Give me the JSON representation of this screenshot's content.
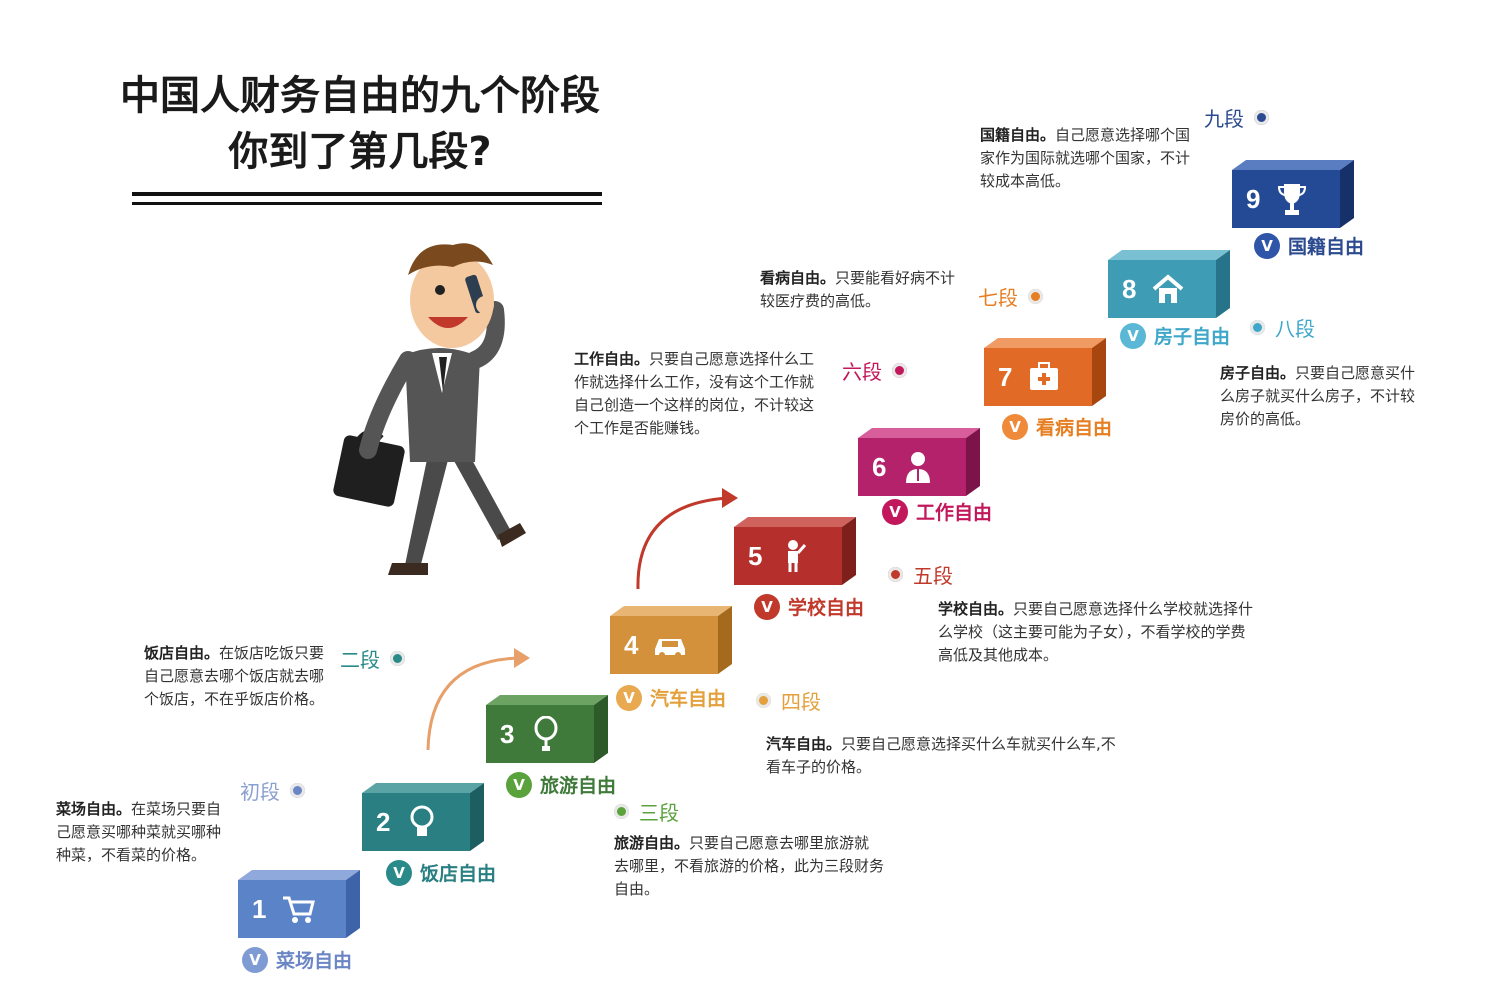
{
  "title": {
    "line1": "中国人财务自由的九个阶段",
    "line2": "你到了第几段?"
  },
  "steps": [
    {
      "number": "1",
      "label": "菜场自由",
      "color": "#5b84c8",
      "icon": "shopping-cart-icon"
    },
    {
      "number": "2",
      "label": "饭店自由",
      "color": "#2a7f83",
      "icon": "light-bulb-icon"
    },
    {
      "number": "3",
      "label": "旅游自由",
      "color": "#3f7a3a",
      "icon": "balloon-icon"
    },
    {
      "number": "4",
      "label": "汽车自由",
      "color": "#d2913a",
      "icon": "car-icon"
    },
    {
      "number": "5",
      "label": "学校自由",
      "color": "#b5302c",
      "icon": "student-icon"
    },
    {
      "number": "6",
      "label": "工作自由",
      "color": "#b3226b",
      "icon": "worker-icon"
    },
    {
      "number": "7",
      "label": "看病自由",
      "color": "#e06a26",
      "icon": "first-aid-kit-icon"
    },
    {
      "number": "8",
      "label": "房子自由",
      "color": "#3e9db5",
      "icon": "house-icon"
    },
    {
      "number": "9",
      "label": "国籍自由",
      "color": "#244a96",
      "icon": "trophy-icon"
    }
  ],
  "stages": [
    {
      "name": "初段",
      "color": "#6b86c4"
    },
    {
      "name": "二段",
      "color": "#2a8a8a"
    },
    {
      "name": "三段",
      "color": "#5aa23c"
    },
    {
      "name": "四段",
      "color": "#e3a03c"
    },
    {
      "name": "五段",
      "color": "#c0392b"
    },
    {
      "name": "六段",
      "color": "#c2185b"
    },
    {
      "name": "七段",
      "color": "#e67e22"
    },
    {
      "name": "八段",
      "color": "#3fa7c9"
    },
    {
      "name": "九段",
      "color": "#2b4a8f"
    }
  ],
  "descriptions": [
    {
      "term": "菜场自由。",
      "text": "在菜场只要自己愿意买哪种菜就买哪种种菜，不看菜的价格。"
    },
    {
      "term": "饭店自由。",
      "text": "在饭店吃饭只要自己愿意去哪个饭店就去哪个饭店，不在乎饭店价格。"
    },
    {
      "term": "旅游自由。",
      "text": "只要自己愿意去哪里旅游就去哪里，不看旅游的价格，此为三段财务自由。"
    },
    {
      "term": "汽车自由。",
      "text": "只要自己愿意选择买什么车就买什么车,不看车子的价格。"
    },
    {
      "term": "学校自由。",
      "text": "只要自己愿意选择什么学校就选择什么学校（这主要可能为子女），不看学校的学费高低及其他成本。"
    },
    {
      "term": "工作自由。",
      "text": "只要自己愿意选择什么工作就选择什么工作，没有这个工作就自己创造一个这样的岗位，不计较这个工作是否能赚钱。"
    },
    {
      "term": "看病自由。",
      "text": "只要能看好病不计较医疗费的高低。"
    },
    {
      "term": "房子自由。",
      "text": "只要自己愿意买什么房子就买什么房子，不计较房价的高低。"
    },
    {
      "term": "国籍自由。",
      "text": "自己愿意选择哪个国家作为国际就选哪个国家，不计较成本高低。"
    }
  ],
  "check_mark": "V"
}
